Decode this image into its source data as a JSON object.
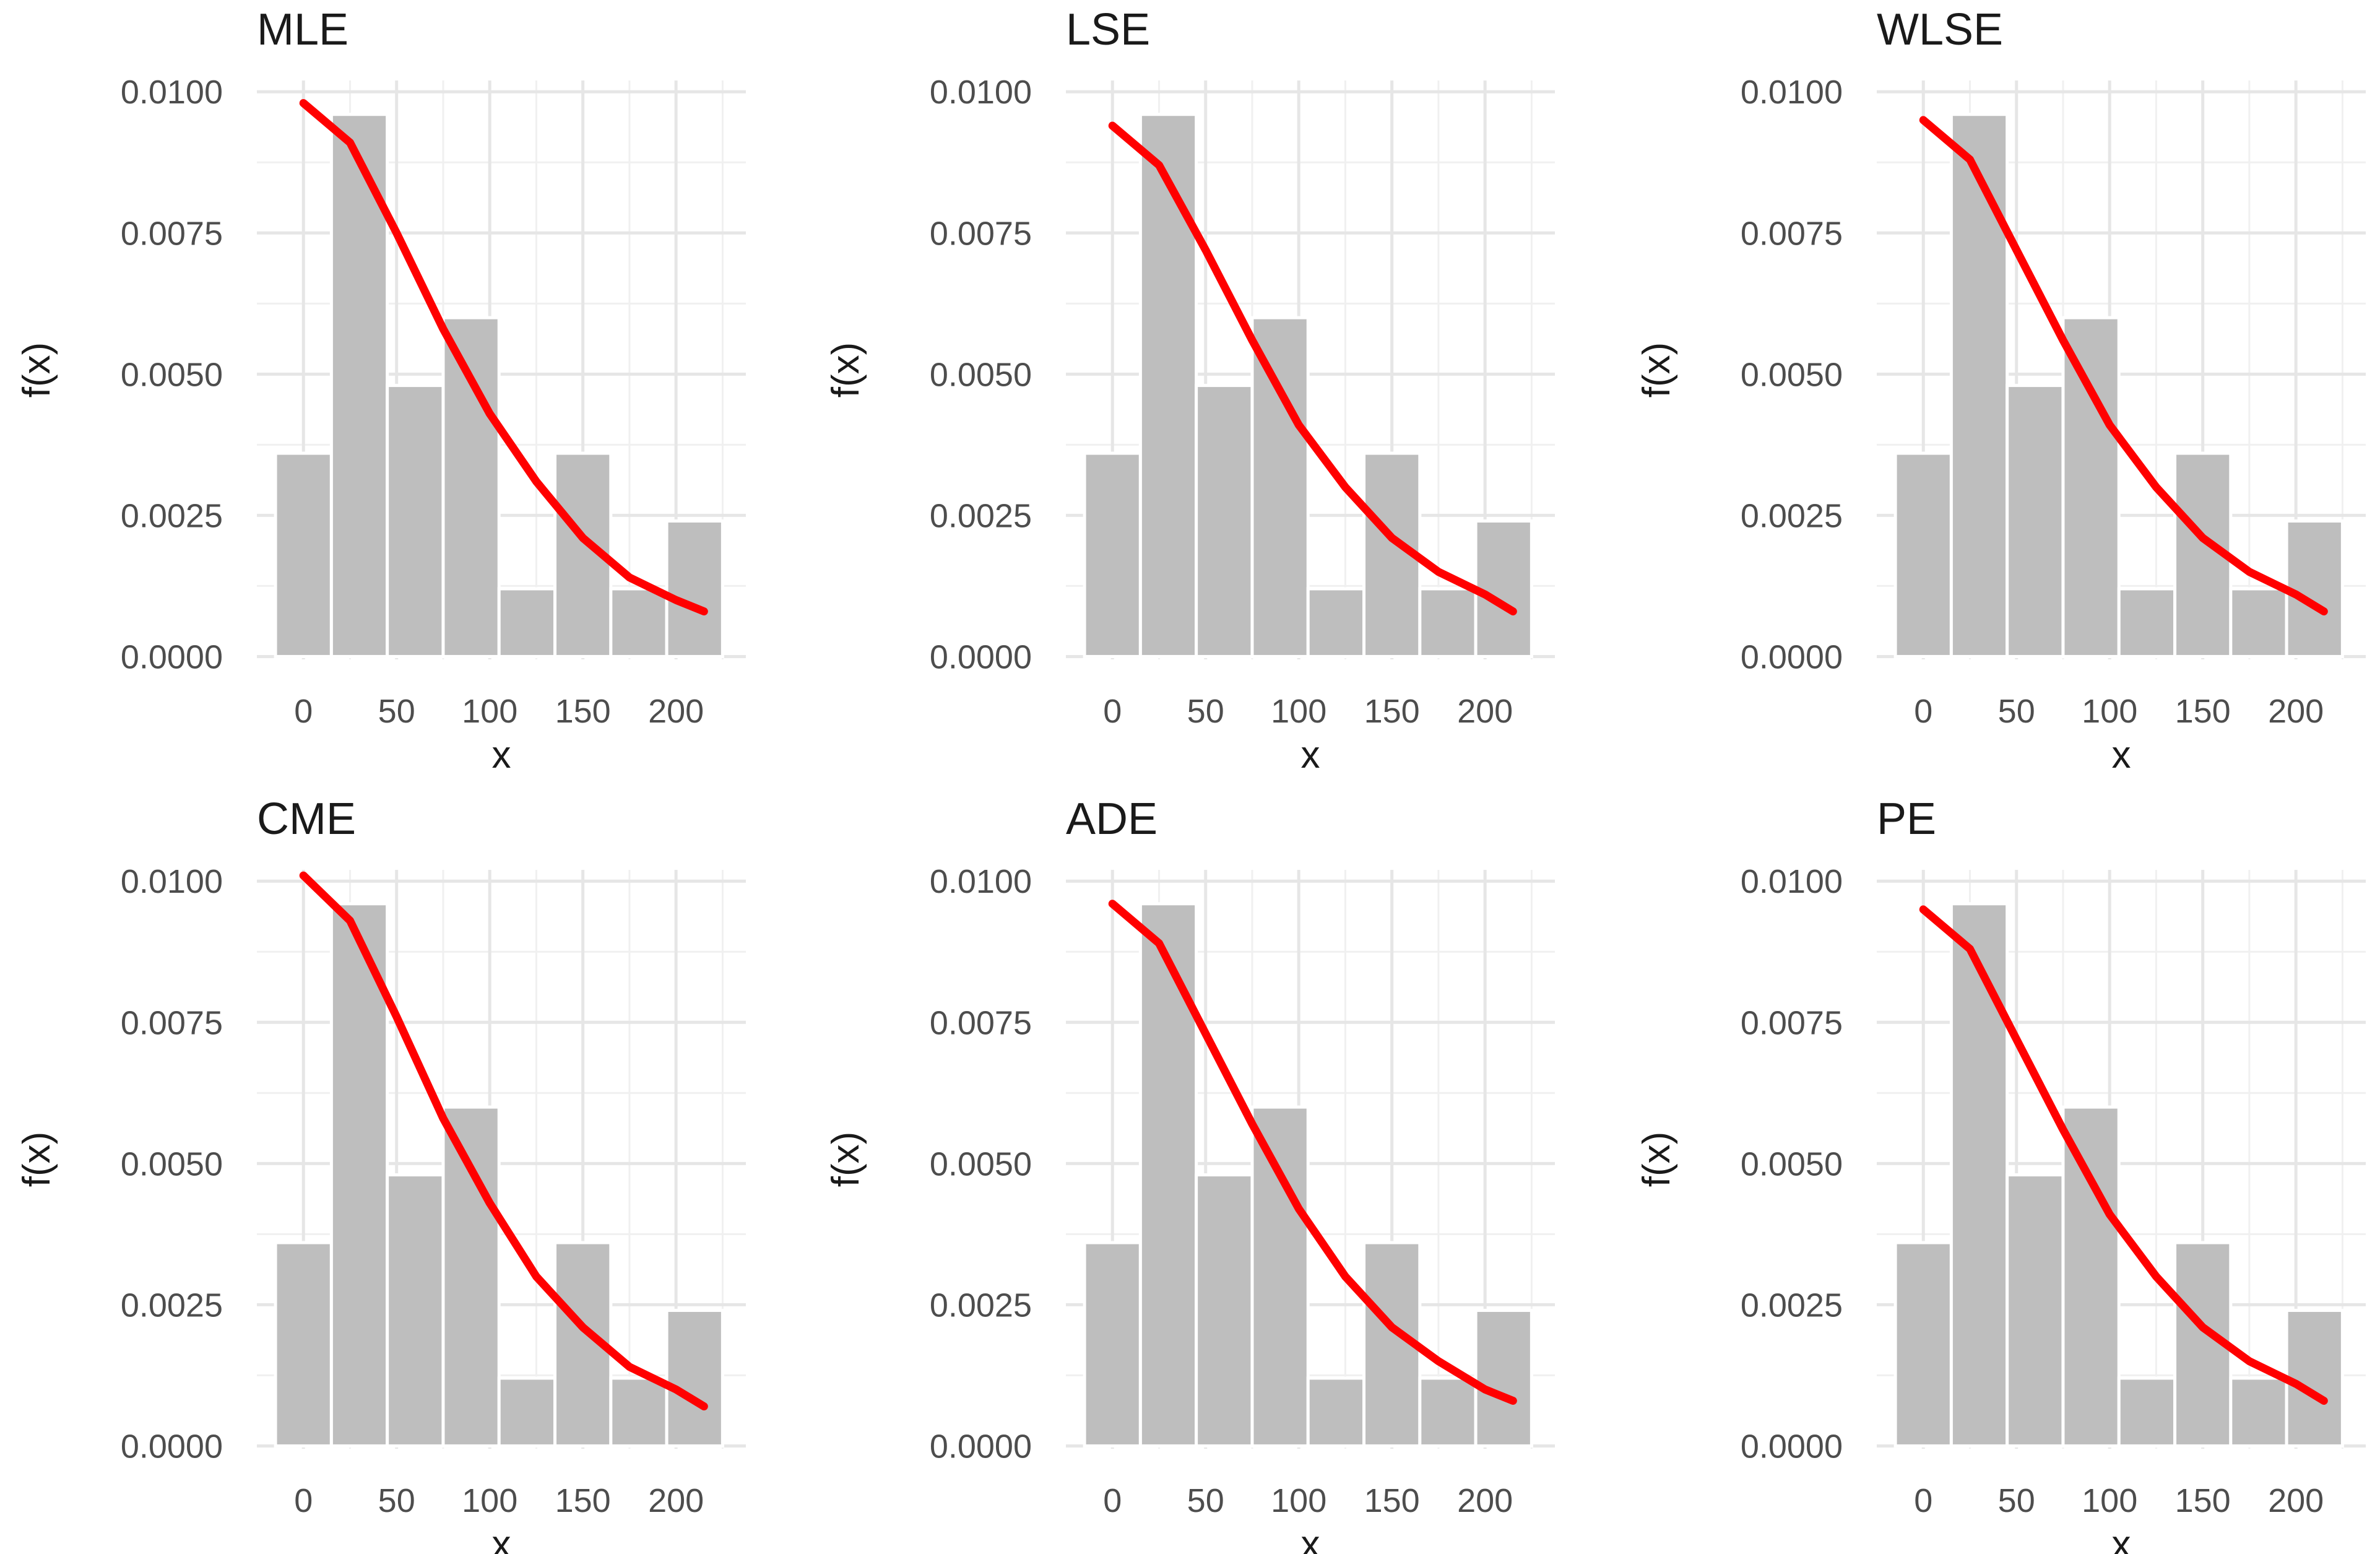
{
  "colors": {
    "bar": "#bebebe",
    "curve": "#ff0000",
    "background": "#ffffff",
    "grid": "#e6e6e6"
  },
  "chart_data": [
    {
      "type": "bar+line",
      "title": "MLE",
      "xlabel": "x",
      "ylabel": "f(x)",
      "xlim": [
        -25,
        237.5
      ],
      "ylim": [
        -5e-05,
        0.0102
      ],
      "xticks": [
        0,
        50,
        100,
        150,
        200
      ],
      "xtick_labels": [
        "0",
        "50",
        "100",
        "150",
        "200"
      ],
      "yticks": [
        0,
        0.0025,
        0.005,
        0.0075,
        0.01
      ],
      "ytick_labels": [
        "0.0000",
        "0.0025",
        "0.0050",
        "0.0075",
        "0.0100"
      ],
      "bins": {
        "x0": -15,
        "width": 30,
        "values": [
          0.0036,
          0.0096,
          0.0048,
          0.006,
          0.0012,
          0.0036,
          0.0012,
          0.0024
        ]
      },
      "curve": {
        "x": [
          0,
          25,
          50,
          75,
          100,
          125,
          150,
          175,
          200,
          215
        ],
        "y": [
          0.0098,
          0.0091,
          0.0075,
          0.0058,
          0.0043,
          0.0031,
          0.0021,
          0.0014,
          0.001,
          0.0008
        ]
      }
    },
    {
      "type": "bar+line",
      "title": "LSE",
      "xlabel": "x",
      "ylabel": "f(x)",
      "xlim": [
        -25,
        237.5
      ],
      "ylim": [
        -5e-05,
        0.0102
      ],
      "xticks": [
        0,
        50,
        100,
        150,
        200
      ],
      "xtick_labels": [
        "0",
        "50",
        "100",
        "150",
        "200"
      ],
      "yticks": [
        0,
        0.0025,
        0.005,
        0.0075,
        0.01
      ],
      "ytick_labels": [
        "0.0000",
        "0.0025",
        "0.0050",
        "0.0075",
        "0.0100"
      ],
      "bins": {
        "x0": -15,
        "width": 30,
        "values": [
          0.0036,
          0.0096,
          0.0048,
          0.006,
          0.0012,
          0.0036,
          0.0012,
          0.0024
        ]
      },
      "curve": {
        "x": [
          0,
          25,
          50,
          75,
          100,
          125,
          150,
          175,
          200,
          215
        ],
        "y": [
          0.0094,
          0.0087,
          0.0072,
          0.0056,
          0.0041,
          0.003,
          0.0021,
          0.0015,
          0.0011,
          0.0008
        ]
      }
    },
    {
      "type": "bar+line",
      "title": "WLSE",
      "xlabel": "x",
      "ylabel": "f(x)",
      "xlim": [
        -25,
        237.5
      ],
      "ylim": [
        -5e-05,
        0.0102
      ],
      "xticks": [
        0,
        50,
        100,
        150,
        200
      ],
      "xtick_labels": [
        "0",
        "50",
        "100",
        "150",
        "200"
      ],
      "yticks": [
        0,
        0.0025,
        0.005,
        0.0075,
        0.01
      ],
      "ytick_labels": [
        "0.0000",
        "0.0025",
        "0.0050",
        "0.0075",
        "0.0100"
      ],
      "bins": {
        "x0": -15,
        "width": 30,
        "values": [
          0.0036,
          0.0096,
          0.0048,
          0.006,
          0.0012,
          0.0036,
          0.0012,
          0.0024
        ]
      },
      "curve": {
        "x": [
          0,
          25,
          50,
          75,
          100,
          125,
          150,
          175,
          200,
          215
        ],
        "y": [
          0.0095,
          0.0088,
          0.0072,
          0.0056,
          0.0041,
          0.003,
          0.0021,
          0.0015,
          0.0011,
          0.0008
        ]
      }
    },
    {
      "type": "bar+line",
      "title": "CME",
      "xlabel": "x",
      "ylabel": "f(x)",
      "xlim": [
        -25,
        237.5
      ],
      "ylim": [
        -5e-05,
        0.0102
      ],
      "xticks": [
        0,
        50,
        100,
        150,
        200
      ],
      "xtick_labels": [
        "0",
        "50",
        "100",
        "150",
        "200"
      ],
      "yticks": [
        0,
        0.0025,
        0.005,
        0.0075,
        0.01
      ],
      "ytick_labels": [
        "0.0000",
        "0.0025",
        "0.0050",
        "0.0075",
        "0.0100"
      ],
      "bins": {
        "x0": -15,
        "width": 30,
        "values": [
          0.0036,
          0.0096,
          0.0048,
          0.006,
          0.0012,
          0.0036,
          0.0012,
          0.0024
        ]
      },
      "curve": {
        "x": [
          0,
          25,
          50,
          75,
          100,
          125,
          150,
          175,
          200,
          215
        ],
        "y": [
          0.0101,
          0.0093,
          0.0076,
          0.0058,
          0.0043,
          0.003,
          0.0021,
          0.0014,
          0.001,
          0.0007
        ]
      }
    },
    {
      "type": "bar+line",
      "title": "ADE",
      "xlabel": "x",
      "ylabel": "f(x)",
      "xlim": [
        -25,
        237.5
      ],
      "ylim": [
        -5e-05,
        0.0102
      ],
      "xticks": [
        0,
        50,
        100,
        150,
        200
      ],
      "xtick_labels": [
        "0",
        "50",
        "100",
        "150",
        "200"
      ],
      "yticks": [
        0,
        0.0025,
        0.005,
        0.0075,
        0.01
      ],
      "ytick_labels": [
        "0.0000",
        "0.0025",
        "0.0050",
        "0.0075",
        "0.0100"
      ],
      "bins": {
        "x0": -15,
        "width": 30,
        "values": [
          0.0036,
          0.0096,
          0.0048,
          0.006,
          0.0012,
          0.0036,
          0.0012,
          0.0024
        ]
      },
      "curve": {
        "x": [
          0,
          25,
          50,
          75,
          100,
          125,
          150,
          175,
          200,
          215
        ],
        "y": [
          0.0096,
          0.0089,
          0.0073,
          0.0057,
          0.0042,
          0.003,
          0.0021,
          0.0015,
          0.001,
          0.0008
        ]
      }
    },
    {
      "type": "bar+line",
      "title": "PE",
      "xlabel": "x",
      "ylabel": "f(x)",
      "xlim": [
        -25,
        237.5
      ],
      "ylim": [
        -5e-05,
        0.0102
      ],
      "xticks": [
        0,
        50,
        100,
        150,
        200
      ],
      "xtick_labels": [
        "0",
        "50",
        "100",
        "150",
        "200"
      ],
      "yticks": [
        0,
        0.0025,
        0.005,
        0.0075,
        0.01
      ],
      "ytick_labels": [
        "0.0000",
        "0.0025",
        "0.0050",
        "0.0075",
        "0.0100"
      ],
      "bins": {
        "x0": -15,
        "width": 30,
        "values": [
          0.0036,
          0.0096,
          0.0048,
          0.006,
          0.0012,
          0.0036,
          0.0012,
          0.0024
        ]
      },
      "curve": {
        "x": [
          0,
          25,
          50,
          75,
          100,
          125,
          150,
          175,
          200,
          215
        ],
        "y": [
          0.0095,
          0.0088,
          0.0072,
          0.0056,
          0.0041,
          0.003,
          0.0021,
          0.0015,
          0.0011,
          0.0008
        ]
      }
    }
  ]
}
